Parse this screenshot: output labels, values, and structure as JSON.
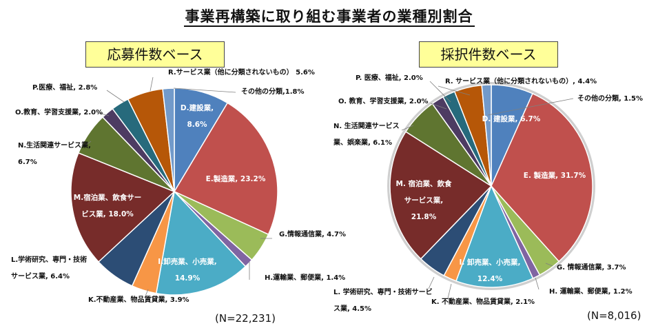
{
  "page": {
    "title": "事業再構築に取り組む事業者の業種別割合"
  },
  "charts": [
    {
      "basis_label": "応募件数ベース",
      "n_label": "(N=22,231)"
    },
    {
      "basis_label": "採択件数ベース",
      "n_label": "(N=8,016)"
    }
  ],
  "chart_data": [
    {
      "type": "pie",
      "title": "応募件数ベース",
      "n": "(N=22,231)",
      "slices": [
        {
          "name": "D.建設業,",
          "value": 8.6,
          "label": "D.建設業,|8.6%",
          "color": "#4f81bd"
        },
        {
          "name": "E.製造業",
          "value": 23.2,
          "label": "E.製造業, 23.2%",
          "color": "#c0504d"
        },
        {
          "name": "G.情報通信業",
          "value": 4.7,
          "label": "G.情報通信業, 4.7%",
          "color": "#9bbb59"
        },
        {
          "name": "H.運輸業、郵便業",
          "value": 1.4,
          "label": "H.運輸業、郵便業, 1.4%",
          "color": "#8064a2"
        },
        {
          "name": "I.卸売業、小売業",
          "value": 14.9,
          "label": "I.卸売業、小売業,|14.9%",
          "color": "#4bacc6"
        },
        {
          "name": "K.不動産業、物品賃貸業",
          "value": 3.9,
          "label": "K.不動産業、物品賃貸業, 3.9%",
          "color": "#f79646"
        },
        {
          "name": "L.学術研究、専門・技術サービス業",
          "value": 6.4,
          "label": "L.学術研究、専門・技術|サービス業, 6.4%",
          "color": "#2c4d75"
        },
        {
          "name": "M.宿泊業、飲食サービス業",
          "value": 18.0,
          "label": "M.宿泊業、飲食サー|ビス業, 18.0%",
          "color": "#772c2a"
        },
        {
          "name": "N.生活関連サービス業",
          "value": 6.7,
          "label": "N.生活関連サービス業,|6.7%",
          "color": "#5f7530"
        },
        {
          "name": "O.教育、学習支援業",
          "value": 2.0,
          "label": "O.教育、学習支援業, 2.0%",
          "color": "#4d3b62"
        },
        {
          "name": "P.医療、福祉",
          "value": 2.8,
          "label": "P.医療、福祉, 2.8%",
          "color": "#276a7c"
        },
        {
          "name": "R.サービス業（他に分類されないもの）",
          "value": 5.6,
          "label": "R.サービス業（他に分類されないもの） 5.6%",
          "color": "#b65708"
        },
        {
          "name": "その他の分類",
          "value": 1.8,
          "label": "その他の分類,1.8%",
          "color": "#729aca"
        }
      ]
    },
    {
      "type": "pie",
      "title": "採択件数ベース",
      "n": "(N=8,016)",
      "slices": [
        {
          "name": "D. 建設業",
          "value": 6.7,
          "label": "D. 建設業, 6.7%",
          "color": "#4f81bd"
        },
        {
          "name": "E. 製造業",
          "value": 31.7,
          "label": "E. 製造業, 31.7%",
          "color": "#c0504d"
        },
        {
          "name": "G. 情報通信業",
          "value": 3.7,
          "label": "G. 情報通信業, 3.7%",
          "color": "#9bbb59"
        },
        {
          "name": "H. 運輸業、郵便業",
          "value": 1.2,
          "label": "H. 運輸業、郵便業, 1.2%",
          "color": "#8064a2"
        },
        {
          "name": "I. 卸売業、小売業",
          "value": 12.4,
          "label": "I. 卸売業、小売業,|12.4%",
          "color": "#4bacc6"
        },
        {
          "name": "K. 不動産業、物品賃貸業",
          "value": 2.1,
          "label": "K. 不動産業、物品賃貸業, 2.1%",
          "color": "#f79646"
        },
        {
          "name": "L. 学術研究、専門・技術サービス業",
          "value": 4.5,
          "label": "L. 学術研究、専門・技術サービ|ス業, 4.5%",
          "color": "#2c4d75"
        },
        {
          "name": "M. 宿泊業、飲食サービス業",
          "value": 21.8,
          "label": "M. 宿泊業、飲食|サービス業,|21.8%",
          "color": "#772c2a"
        },
        {
          "name": "N. 生活関連サービス業、娯楽業",
          "value": 6.1,
          "label": "N. 生活関連サービス|業、娯楽業, 6.1%",
          "color": "#5f7530"
        },
        {
          "name": "O. 教育、学習支援業",
          "value": 2.0,
          "label": "O. 教育、学習支援業, 2.0%",
          "color": "#4d3b62"
        },
        {
          "name": "P. 医療、福祉",
          "value": 2.0,
          "label": "P. 医療、福祉, 2.0%",
          "color": "#276a7c"
        },
        {
          "name": "R. サービス業（他に分類されないもの）",
          "value": 4.4,
          "label": "R. サービス業（他に分類されないもの）, 4.4%",
          "color": "#b65708"
        },
        {
          "name": "その他の分類",
          "value": 1.5,
          "label": "その他の分類, 1.5%",
          "color": "#729aca"
        }
      ]
    }
  ]
}
